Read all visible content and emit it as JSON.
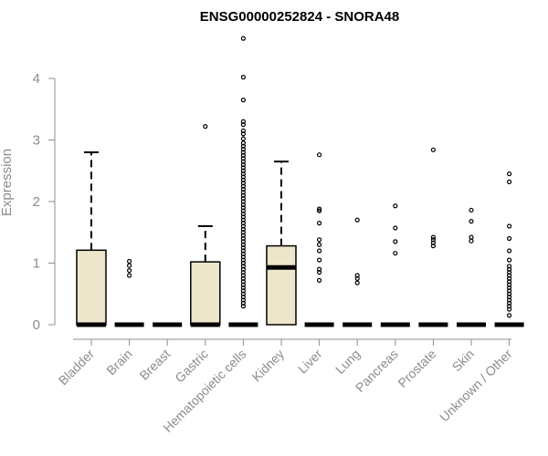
{
  "chart_data": {
    "type": "box",
    "title": "ENSG00000252824 - SNORA48",
    "ylabel": "Expression",
    "xlabel": "",
    "ylim": [
      0,
      4.6
    ],
    "yticks": [
      0,
      1,
      2,
      3,
      4
    ],
    "ytick_labels": [
      "0",
      "1",
      "2",
      "3",
      "4"
    ],
    "grid": false,
    "box_fill": "#ede6cb",
    "categories": [
      "Bladder",
      "Brain",
      "Breast",
      "Gastric",
      "Hematopoietic cells",
      "Kidney",
      "Liver",
      "Lung",
      "Pancreas",
      "Prostate",
      "Skin",
      "Unknown / Other"
    ],
    "boxes": [
      {
        "q1": 0,
        "median": 0,
        "q3": 1.21,
        "whisker_low": 0,
        "whisker_high": 2.8,
        "outliers": []
      },
      {
        "q1": 0,
        "median": 0,
        "q3": 0,
        "whisker_low": 0,
        "whisker_high": 0,
        "outliers": [
          0.8,
          0.88,
          0.96,
          1.03
        ]
      },
      {
        "q1": 0,
        "median": 0,
        "q3": 0,
        "whisker_low": 0,
        "whisker_high": 0,
        "outliers": []
      },
      {
        "q1": 0,
        "median": 0,
        "q3": 1.02,
        "whisker_low": 0,
        "whisker_high": 1.6,
        "outliers": [
          3.22
        ]
      },
      {
        "q1": 0,
        "median": 0,
        "q3": 0,
        "whisker_low": 0,
        "whisker_high": 0,
        "outliers": [
          4.65,
          4.02,
          3.65,
          3.3,
          3.25,
          3.15,
          3.1,
          3.02,
          2.95,
          2.9,
          2.85,
          2.8,
          2.75,
          2.7,
          2.65,
          2.6,
          2.55,
          2.5,
          2.45,
          2.4,
          2.35,
          2.3,
          2.25,
          2.2,
          2.15,
          2.1,
          2.05,
          2.0,
          1.95,
          1.9,
          1.85,
          1.8,
          1.75,
          1.7,
          1.65,
          1.6,
          1.55,
          1.5,
          1.45,
          1.4,
          1.35,
          1.3,
          1.25,
          1.2,
          1.15,
          1.1,
          1.05,
          1.0,
          0.95,
          0.9,
          0.85,
          0.8,
          0.75,
          0.7,
          0.65,
          0.6,
          0.55,
          0.5,
          0.45,
          0.4,
          0.35,
          0.3
        ]
      },
      {
        "q1": 0,
        "median": 0.93,
        "q3": 1.28,
        "whisker_low": 0,
        "whisker_high": 2.65,
        "outliers": []
      },
      {
        "q1": 0,
        "median": 0,
        "q3": 0,
        "whisker_low": 0,
        "whisker_high": 0,
        "outliers": [
          2.76,
          1.88,
          1.85,
          1.65,
          1.38,
          1.3,
          1.2,
          1.05,
          0.9,
          0.85,
          0.72
        ]
      },
      {
        "q1": 0,
        "median": 0,
        "q3": 0,
        "whisker_low": 0,
        "whisker_high": 0,
        "outliers": [
          1.7,
          0.8,
          0.75,
          0.68
        ]
      },
      {
        "q1": 0,
        "median": 0,
        "q3": 0,
        "whisker_low": 0,
        "whisker_high": 0,
        "outliers": [
          1.93,
          1.57,
          1.35,
          1.16
        ]
      },
      {
        "q1": 0,
        "median": 0,
        "q3": 0,
        "whisker_low": 0,
        "whisker_high": 0,
        "outliers": [
          2.84,
          1.42,
          1.38,
          1.33,
          1.28
        ]
      },
      {
        "q1": 0,
        "median": 0,
        "q3": 0,
        "whisker_low": 0,
        "whisker_high": 0,
        "outliers": [
          1.86,
          1.68,
          1.42,
          1.36
        ]
      },
      {
        "q1": 0,
        "median": 0,
        "q3": 0,
        "whisker_low": 0,
        "whisker_high": 0,
        "outliers": [
          2.45,
          2.32,
          1.6,
          1.4,
          1.2,
          1.05,
          0.95,
          0.9,
          0.85,
          0.8,
          0.75,
          0.7,
          0.65,
          0.6,
          0.55,
          0.5,
          0.45,
          0.4,
          0.35,
          0.3,
          0.25,
          0.15
        ]
      }
    ]
  }
}
